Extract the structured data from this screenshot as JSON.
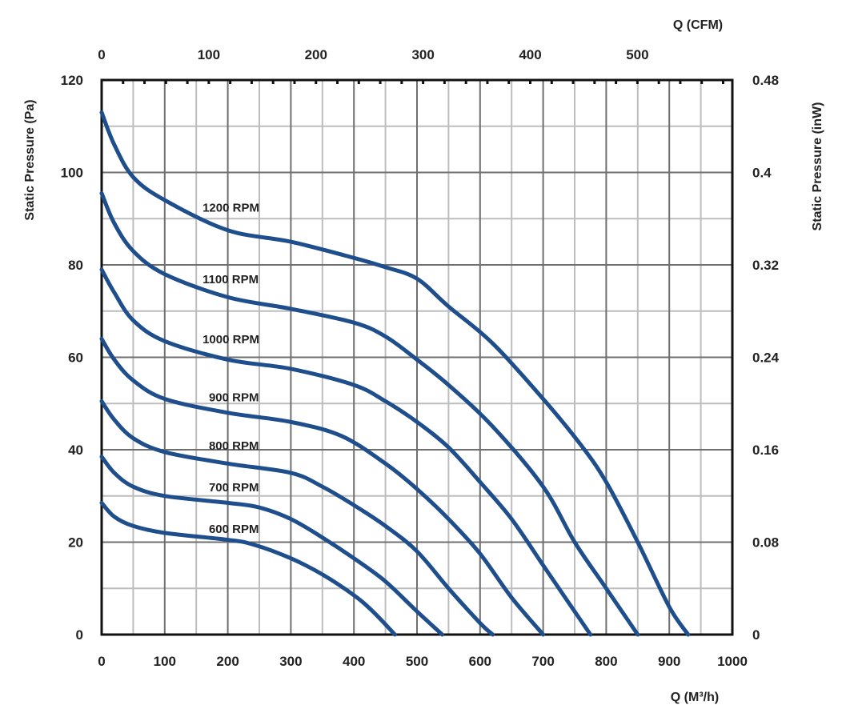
{
  "chart_data": {
    "type": "line",
    "title": "",
    "xlabel": "Q (M³/h)",
    "x2label": "Q (CFM)",
    "ylabel": "Static Pressure (Pa)",
    "y2label": "Static Pressure (inW)",
    "xlim": [
      0,
      1000
    ],
    "x2lim": [
      0,
      588.6
    ],
    "ylim": [
      0,
      120
    ],
    "y2lim": [
      0,
      0.48
    ],
    "x_ticks": [
      "0",
      "100",
      "200",
      "300",
      "400",
      "500",
      "600",
      "700",
      "800",
      "900",
      "1000"
    ],
    "x2_ticks": [
      {
        "value": 0,
        "label": "0"
      },
      {
        "value": 100,
        "label": "100"
      },
      {
        "value": 200,
        "label": "200"
      },
      {
        "value": 300,
        "label": "300"
      },
      {
        "value": 400,
        "label": "400"
      },
      {
        "value": 500,
        "label": "500"
      }
    ],
    "y_ticks": [
      {
        "value": 0,
        "label": "0"
      },
      {
        "value": 20,
        "label": "20"
      },
      {
        "value": 40,
        "label": "40"
      },
      {
        "value": 60,
        "label": "60"
      },
      {
        "value": 80,
        "label": "80"
      },
      {
        "value": 100,
        "label": "100"
      },
      {
        "value": 120,
        "label": "120"
      }
    ],
    "y2_ticks": [
      {
        "value": 0,
        "label": "0"
      },
      {
        "value": 20,
        "label": "0.08"
      },
      {
        "value": 40,
        "label": "0.16"
      },
      {
        "value": 60,
        "label": "0.24"
      },
      {
        "value": 80,
        "label": "0.32"
      },
      {
        "value": 100,
        "label": "0.4"
      },
      {
        "value": 120,
        "label": "0.48"
      }
    ],
    "grid": true,
    "line_color": "#1f4e8c",
    "series": [
      {
        "name": "1200 RPM",
        "label_x": 160,
        "label_y": 91.5,
        "x": [
          0,
          20,
          50,
          100,
          200,
          300,
          400,
          450,
          500,
          550,
          620,
          700,
          760,
          800,
          850,
          900,
          930
        ],
        "y": [
          113,
          106,
          99,
          94,
          87.5,
          85,
          81.5,
          79.5,
          77,
          71,
          63,
          51,
          41,
          33,
          20,
          6,
          0
        ]
      },
      {
        "name": "1100 RPM",
        "label_x": 160,
        "label_y": 76,
        "x": [
          0,
          20,
          50,
          100,
          200,
          300,
          400,
          450,
          500,
          550,
          620,
          700,
          750,
          800,
          850
        ],
        "y": [
          95.5,
          89,
          83,
          78,
          73,
          70.5,
          67.5,
          64.5,
          59.5,
          54,
          45,
          32,
          20,
          10,
          0
        ]
      },
      {
        "name": "1000 RPM",
        "label_x": 160,
        "label_y": 63,
        "x": [
          0,
          20,
          50,
          100,
          200,
          300,
          400,
          450,
          500,
          550,
          600,
          650,
          700,
          740,
          775
        ],
        "y": [
          79,
          74,
          68,
          63.5,
          59.5,
          57.5,
          54,
          50.5,
          46,
          40.5,
          33,
          25,
          15,
          7,
          0
        ]
      },
      {
        "name": "900 RPM",
        "label_x": 170,
        "label_y": 50.5,
        "x": [
          0,
          20,
          50,
          100,
          200,
          300,
          380,
          450,
          500,
          550,
          600,
          650,
          700
        ],
        "y": [
          64,
          59.5,
          55,
          51,
          48,
          46,
          43,
          37,
          31.5,
          25,
          17.5,
          8,
          0
        ]
      },
      {
        "name": "800 RPM",
        "label_x": 170,
        "label_y": 40,
        "x": [
          0,
          20,
          50,
          100,
          200,
          300,
          350,
          400,
          450,
          500,
          550,
          600,
          620
        ],
        "y": [
          50.5,
          46.5,
          42.5,
          39.5,
          37,
          35,
          32,
          28,
          23.5,
          18,
          10,
          2.5,
          0
        ]
      },
      {
        "name": "700 RPM",
        "label_x": 170,
        "label_y": 31,
        "x": [
          0,
          20,
          50,
          100,
          200,
          250,
          300,
          350,
          400,
          450,
          500,
          540
        ],
        "y": [
          38.5,
          35,
          32,
          30,
          28.5,
          27.5,
          25,
          21,
          16.5,
          11.5,
          5,
          0
        ]
      },
      {
        "name": "600 RPM",
        "label_x": 170,
        "label_y": 22,
        "x": [
          0,
          20,
          50,
          100,
          200,
          240,
          300,
          350,
          400,
          430,
          465
        ],
        "y": [
          28.5,
          25.5,
          23.5,
          22,
          20.5,
          19.5,
          16.5,
          13,
          8.5,
          5,
          0
        ]
      }
    ]
  }
}
